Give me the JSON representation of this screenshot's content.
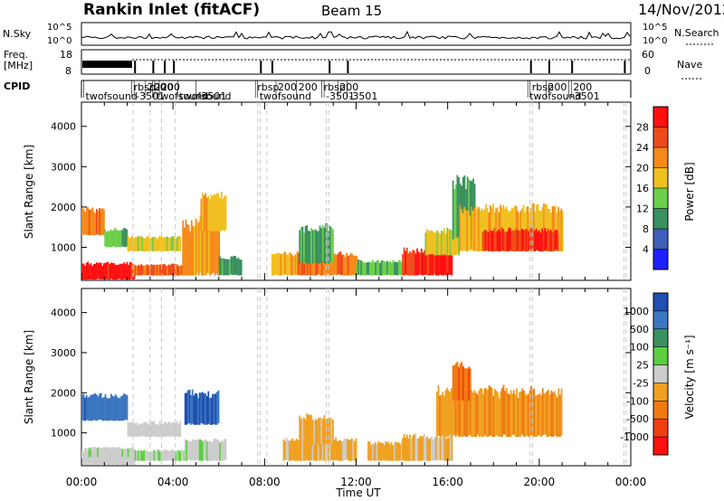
{
  "header": {
    "station": "Rankin Inlet (fitACF)",
    "beam": "Beam 15",
    "date": "14/Nov/2012"
  },
  "noise_panel": {
    "left_label": "N.Sky",
    "right_label": "N.Search",
    "left_ticks": [
      "10^5",
      "10^0"
    ],
    "right_ticks": [
      "10^5",
      "10^0"
    ]
  },
  "freq_panel": {
    "left_label_line1": "Freq.",
    "left_label_line2": "[MHz]",
    "right_label": "Nave",
    "left_ticks": [
      "18",
      "8"
    ],
    "right_ticks": [
      "60",
      "0"
    ]
  },
  "cpid_panel": {
    "label": "CPID",
    "entries": [
      {
        "t": 0.1,
        "text": "twofsound",
        "row": 1
      },
      {
        "t": 2.2,
        "text": "rbsp",
        "row": 0
      },
      {
        "t": 2.3,
        "text": "-3501",
        "row": 1
      },
      {
        "t": 2.8,
        "text": "200",
        "row": 0
      },
      {
        "t": 3.1,
        "text": "200",
        "row": 0
      },
      {
        "t": 3.2,
        "text": "twofsound",
        "row": 1
      },
      {
        "t": 3.4,
        "text": "200",
        "row": 0
      },
      {
        "t": 4.2,
        "text": "twofsound",
        "row": 1
      },
      {
        "t": 5.0,
        "text": "-3501",
        "row": 1
      },
      {
        "t": 7.6,
        "text": "rbsp",
        "row": 0
      },
      {
        "t": 7.7,
        "text": "twofsound",
        "row": 1
      },
      {
        "t": 8.5,
        "text": "200",
        "row": 0
      },
      {
        "t": 9.4,
        "text": "200",
        "row": 0
      },
      {
        "t": 10.5,
        "text": "rbsp",
        "row": 0
      },
      {
        "t": 10.6,
        "text": "-3501",
        "row": 1
      },
      {
        "t": 11.2,
        "text": "200",
        "row": 0
      },
      {
        "t": 11.6,
        "text": "-3501",
        "row": 1
      },
      {
        "t": 19.6,
        "text": "rbsp",
        "row": 0
      },
      {
        "t": 19.5,
        "text": "twofsound",
        "row": 1
      },
      {
        "t": 20.3,
        "text": "200",
        "row": 0
      },
      {
        "t": 21.3,
        "text": "-3501",
        "row": 1
      },
      {
        "t": 21.4,
        "text": "200",
        "row": 0
      }
    ]
  },
  "colors": {
    "power": [
      "#1f1fff",
      "#3f5fb8",
      "#3a9060",
      "#6ccf4a",
      "#f0c020",
      "#f58a1a",
      "#f04a1a",
      "#ff1010"
    ],
    "velocity": [
      "#1f4fb0",
      "#3a75c0",
      "#3a9060",
      "#5ccf40",
      "#cccccc",
      "#f0a020",
      "#f07a10",
      "#f04010",
      "#ff1010"
    ]
  },
  "chart_data": [
    {
      "type": "heatmap",
      "panel": "power",
      "ylabel": "Slant Range [km]",
      "x_range": [
        0,
        24
      ],
      "ylim": [
        180,
        4600
      ],
      "y_ticks": [
        1000,
        2000,
        3000,
        4000
      ],
      "colorbar": {
        "label": "Power [dB]",
        "ticks": [
          "28",
          "24",
          "20",
          "16",
          "12",
          "8",
          "4"
        ],
        "range": [
          0,
          30
        ]
      },
      "echo_regions": [
        {
          "t0": 0.0,
          "t1": 2.3,
          "r0": 200,
          "r1": 650,
          "v": 28
        },
        {
          "t0": 0.0,
          "t1": 1.0,
          "r0": 1300,
          "r1": 2000,
          "v": 22
        },
        {
          "t0": 1.0,
          "t1": 2.0,
          "r0": 1000,
          "r1": 1500,
          "v": 12
        },
        {
          "t0": 2.0,
          "t1": 4.3,
          "r0": 900,
          "r1": 1300,
          "v": 16
        },
        {
          "t0": 2.2,
          "t1": 4.5,
          "r0": 300,
          "r1": 600,
          "v": 24
        },
        {
          "t0": 4.4,
          "t1": 6.0,
          "r0": 300,
          "r1": 1800,
          "v": 20
        },
        {
          "t0": 5.2,
          "t1": 6.3,
          "r0": 1400,
          "r1": 2400,
          "v": 18
        },
        {
          "t0": 6.0,
          "t1": 7.0,
          "r0": 300,
          "r1": 800,
          "v": 10
        },
        {
          "t0": 8.3,
          "t1": 9.4,
          "r0": 300,
          "r1": 900,
          "v": 18
        },
        {
          "t0": 9.4,
          "t1": 12.0,
          "r0": 300,
          "r1": 900,
          "v": 22
        },
        {
          "t0": 9.5,
          "t1": 11.0,
          "r0": 600,
          "r1": 1600,
          "v": 10
        },
        {
          "t0": 12.0,
          "t1": 14.0,
          "r0": 300,
          "r1": 700,
          "v": 12
        },
        {
          "t0": 14.0,
          "t1": 16.2,
          "r0": 300,
          "r1": 1000,
          "v": 27
        },
        {
          "t0": 15.0,
          "t1": 16.5,
          "r0": 800,
          "r1": 1500,
          "v": 16
        },
        {
          "t0": 16.2,
          "t1": 17.2,
          "r0": 1200,
          "r1": 2800,
          "v": 10
        },
        {
          "t0": 16.5,
          "t1": 21.0,
          "r0": 900,
          "r1": 2100,
          "v": 18
        },
        {
          "t0": 17.5,
          "t1": 20.8,
          "r0": 900,
          "r1": 1500,
          "v": 26
        }
      ]
    },
    {
      "type": "heatmap",
      "panel": "velocity",
      "xlabel": "Time UT",
      "ylabel": "Slant Range [km]",
      "x_range": [
        0,
        24
      ],
      "x_ticks": [
        "00:00",
        "04:00",
        "08:00",
        "12:00",
        "16:00",
        "20:00",
        "00:00"
      ],
      "ylim": [
        180,
        4600
      ],
      "y_ticks": [
        1000,
        2000,
        3000,
        4000
      ],
      "colorbar": {
        "label": "Velocity  [m s⁻¹]",
        "ticks": [
          "1000",
          "500",
          "100",
          "25",
          "-25",
          "-100",
          "-500",
          "-1000"
        ],
        "range": [
          -1000,
          1000
        ]
      },
      "echo_regions": [
        {
          "t0": 0.0,
          "t1": 2.0,
          "r0": 1300,
          "r1": 2000,
          "v": 700
        },
        {
          "t0": 0.0,
          "t1": 2.3,
          "r0": 200,
          "r1": 650,
          "v": 0
        },
        {
          "t0": 0.3,
          "t1": 2.3,
          "r0": 400,
          "r1": 650,
          "v": 60
        },
        {
          "t0": 2.0,
          "t1": 4.3,
          "r0": 900,
          "r1": 1300,
          "v": 0
        },
        {
          "t0": 2.2,
          "t1": 4.5,
          "r0": 300,
          "r1": 600,
          "v": 80
        },
        {
          "t0": 4.5,
          "t1": 6.0,
          "r0": 1200,
          "r1": 2100,
          "v": 800
        },
        {
          "t0": 4.5,
          "t1": 6.3,
          "r0": 300,
          "r1": 900,
          "v": 70
        },
        {
          "t0": 8.8,
          "t1": 12.0,
          "r0": 300,
          "r1": 900,
          "v": -150
        },
        {
          "t0": 9.5,
          "t1": 11.0,
          "r0": 700,
          "r1": 1500,
          "v": -150
        },
        {
          "t0": 12.5,
          "t1": 14.5,
          "r0": 300,
          "r1": 800,
          "v": -150
        },
        {
          "t0": 14.0,
          "t1": 16.2,
          "r0": 300,
          "r1": 1000,
          "v": -150
        },
        {
          "t0": 15.5,
          "t1": 21.0,
          "r0": 900,
          "r1": 2200,
          "v": -300
        },
        {
          "t0": 16.2,
          "t1": 17.0,
          "r0": 1800,
          "r1": 2800,
          "v": -500
        }
      ]
    }
  ]
}
